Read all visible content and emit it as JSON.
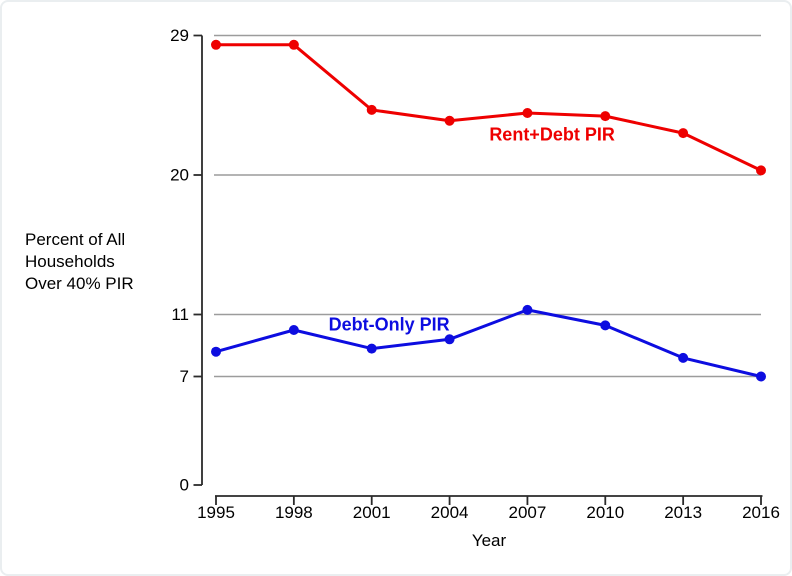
{
  "window": {
    "background_color": "#ffffff",
    "border_color": "#eaeef0"
  },
  "chart_data": {
    "type": "line",
    "x": [
      1995,
      1998,
      2001,
      2004,
      2007,
      2010,
      2013,
      2016
    ],
    "x_tick_labels": [
      "1995",
      "1998",
      "2001",
      "2004",
      "2007",
      "2010",
      "2013",
      "2016"
    ],
    "y_ticks": [
      0,
      7,
      11,
      20,
      29
    ],
    "y_tick_labels": [
      "0",
      "7",
      "11",
      "20",
      "29"
    ],
    "gridline_values": [
      7,
      11,
      20,
      29
    ],
    "ylim": [
      0,
      29
    ],
    "xlabel": "Year",
    "ylabel": "Percent of All\nHouseholds\nOver 40% PIR",
    "grid_on": true,
    "grid_color": "#9c9c9c",
    "axis_color": "#2a2a2a",
    "series": [
      {
        "name": "Rent+Debt PIR",
        "color": "#ee0000",
        "values": [
          28.4,
          28.4,
          24.2,
          23.5,
          24.0,
          23.8,
          22.7,
          20.3
        ]
      },
      {
        "name": "Debt-Only PIR",
        "color": "#0d0de0",
        "values": [
          8.6,
          10.0,
          8.8,
          9.4,
          11.3,
          10.3,
          8.2,
          7.0
        ]
      }
    ],
    "annotations": [
      {
        "text": "Rent+Debt PIR",
        "series": 0,
        "x": 2007.95,
        "y": 22.6
      },
      {
        "text": "Debt-Only PIR",
        "series": 1,
        "x": 2001.67,
        "y": 10.3
      }
    ],
    "legend_position": "inline-labels"
  }
}
